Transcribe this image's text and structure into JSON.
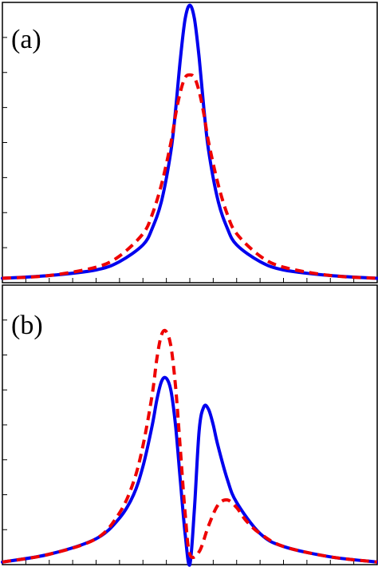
{
  "panels": [
    {
      "label": "(a)"
    },
    {
      "label": "(b)"
    }
  ],
  "colors": {
    "solid": "#0000ee",
    "dashed": "#ee0000",
    "frame": "#000000"
  },
  "chart_data": [
    {
      "type": "line",
      "panel": "(a)",
      "xlim": [
        -1,
        1
      ],
      "ylim": [
        0,
        1
      ],
      "x_ticks": [
        -1,
        -0.875,
        -0.75,
        -0.625,
        -0.5,
        -0.375,
        -0.25,
        -0.125,
        0,
        0.125,
        0.25,
        0.375,
        0.5,
        0.625,
        0.75,
        0.875,
        1
      ],
      "y_ticks": [
        0,
        0.125,
        0.25,
        0.375,
        0.5,
        0.625,
        0.75,
        0.875,
        1
      ],
      "tick_labels_shown": false,
      "grid": false,
      "series": [
        {
          "style": "solid",
          "color": "#0000ee",
          "x": [
            -1,
            -0.75,
            -0.5,
            -0.375,
            -0.25,
            -0.2,
            -0.15,
            -0.1,
            -0.075,
            -0.05,
            -0.025,
            0,
            0.025,
            0.05,
            0.075,
            0.1,
            0.15,
            0.2,
            0.25,
            0.375,
            0.5,
            0.75,
            1
          ],
          "y": [
            0.01,
            0.02,
            0.04,
            0.07,
            0.13,
            0.19,
            0.29,
            0.47,
            0.62,
            0.8,
            0.94,
            0.99,
            0.94,
            0.8,
            0.62,
            0.47,
            0.29,
            0.19,
            0.13,
            0.07,
            0.04,
            0.02,
            0.01
          ]
        },
        {
          "style": "dashed",
          "color": "#ee0000",
          "x": [
            -1,
            -0.75,
            -0.5,
            -0.375,
            -0.25,
            -0.2,
            -0.15,
            -0.1,
            -0.075,
            -0.05,
            -0.025,
            0,
            0.025,
            0.05,
            0.075,
            0.1,
            0.15,
            0.2,
            0.25,
            0.375,
            0.5,
            0.75,
            1
          ],
          "y": [
            0.01,
            0.02,
            0.05,
            0.09,
            0.17,
            0.24,
            0.35,
            0.5,
            0.6,
            0.68,
            0.73,
            0.74,
            0.73,
            0.68,
            0.6,
            0.5,
            0.35,
            0.24,
            0.17,
            0.09,
            0.05,
            0.02,
            0.01
          ]
        }
      ]
    },
    {
      "type": "line",
      "panel": "(b)",
      "xlim": [
        -1,
        1
      ],
      "ylim": [
        0,
        1
      ],
      "x_ticks": [
        -1,
        -0.875,
        -0.75,
        -0.625,
        -0.5,
        -0.375,
        -0.25,
        -0.125,
        0,
        0.125,
        0.25,
        0.375,
        0.5,
        0.625,
        0.75,
        0.875,
        1
      ],
      "y_ticks": [
        0,
        0.125,
        0.25,
        0.375,
        0.5,
        0.625,
        0.75,
        0.875,
        1
      ],
      "tick_labels_shown": false,
      "grid": false,
      "series": [
        {
          "style": "solid",
          "color": "#0000ee",
          "x": [
            -1,
            -0.75,
            -0.5,
            -0.375,
            -0.3,
            -0.25,
            -0.2,
            -0.175,
            -0.15,
            -0.125,
            -0.1,
            -0.075,
            -0.05,
            -0.025,
            0,
            0.025,
            0.05,
            0.075,
            0.1,
            0.125,
            0.15,
            0.2,
            0.25,
            0.375,
            0.5,
            0.75,
            1
          ],
          "y": [
            0.01,
            0.04,
            0.1,
            0.18,
            0.27,
            0.38,
            0.54,
            0.64,
            0.71,
            0.72,
            0.67,
            0.53,
            0.32,
            0.12,
            0.0,
            0.22,
            0.52,
            0.61,
            0.6,
            0.54,
            0.46,
            0.33,
            0.24,
            0.12,
            0.07,
            0.03,
            0.01
          ]
        },
        {
          "style": "dashed",
          "color": "#ee0000",
          "x": [
            -1,
            -0.75,
            -0.5,
            -0.375,
            -0.3,
            -0.25,
            -0.2,
            -0.175,
            -0.15,
            -0.125,
            -0.1,
            -0.075,
            -0.05,
            -0.025,
            0,
            0.05,
            0.1,
            0.15,
            0.2,
            0.25,
            0.3,
            0.375,
            0.5,
            0.75,
            1
          ],
          "y": [
            0.01,
            0.04,
            0.1,
            0.2,
            0.32,
            0.46,
            0.66,
            0.8,
            0.89,
            0.9,
            0.84,
            0.68,
            0.44,
            0.2,
            0.04,
            0.05,
            0.15,
            0.23,
            0.25,
            0.22,
            0.17,
            0.12,
            0.07,
            0.03,
            0.01
          ]
        }
      ]
    }
  ]
}
